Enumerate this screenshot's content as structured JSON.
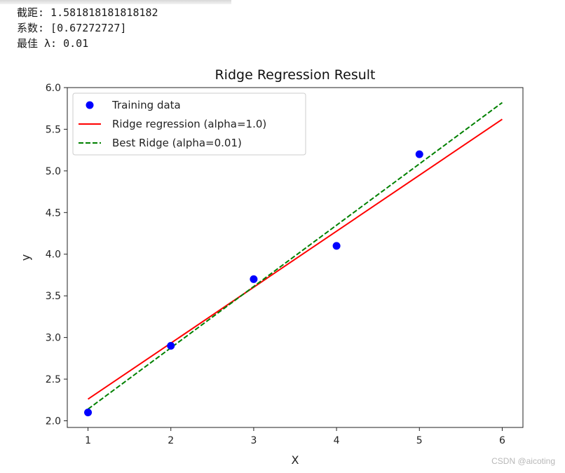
{
  "console": {
    "lines": [
      "截距: 1.581818181818182",
      "系数: [0.67272727]",
      "最佳 λ: 0.01"
    ]
  },
  "watermark": "CSDN @aicoting",
  "chart_data": {
    "type": "scatter",
    "title": "Ridge Regression Result",
    "xlabel": "X",
    "ylabel": "y",
    "xlim": [
      0.75,
      6.25
    ],
    "ylim": [
      1.92,
      6.0
    ],
    "xticks": [
      1,
      2,
      3,
      4,
      5,
      6
    ],
    "yticks": [
      2.0,
      2.5,
      3.0,
      3.5,
      4.0,
      4.5,
      5.0,
      5.5,
      6.0
    ],
    "grid": false,
    "legend_position": "top-left",
    "series": [
      {
        "name": "Training data",
        "kind": "scatter",
        "color": "#0000ff",
        "x": [
          1,
          2,
          3,
          4,
          5
        ],
        "y": [
          2.1,
          2.9,
          3.7,
          4.1,
          5.2
        ]
      },
      {
        "name": "Ridge regression (alpha=1.0)",
        "kind": "line",
        "style": "solid",
        "color": "#ff0000",
        "x": [
          1,
          6
        ],
        "y": [
          2.26,
          5.62
        ]
      },
      {
        "name": "Best Ridge (alpha=0.01)",
        "kind": "line",
        "style": "dashed",
        "color": "#008000",
        "x": [
          1,
          6
        ],
        "y": [
          2.14,
          5.82
        ]
      }
    ]
  }
}
